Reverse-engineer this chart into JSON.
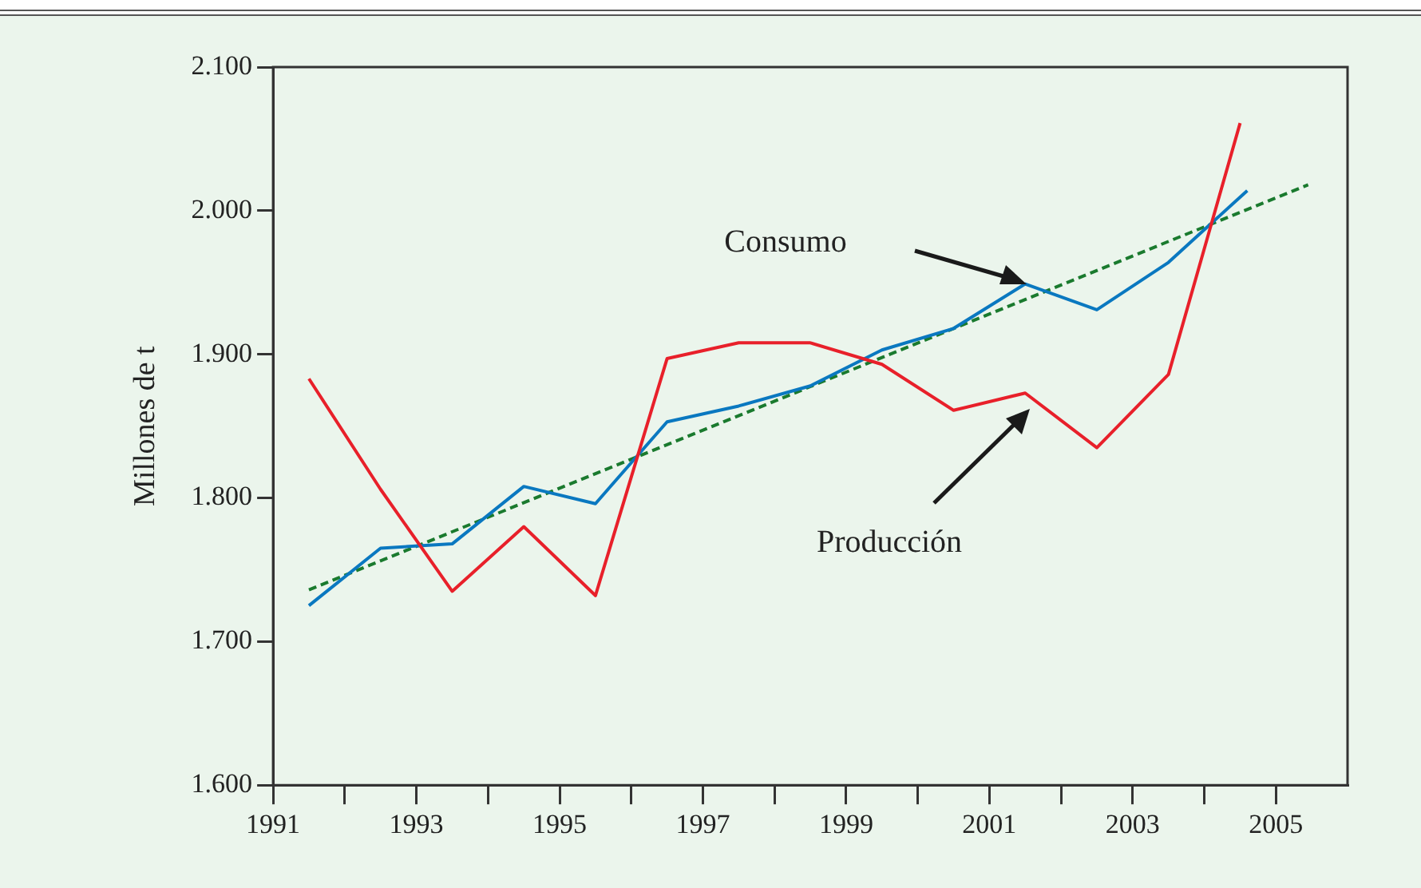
{
  "chart_data": {
    "type": "line",
    "ylabel": "Millones de t",
    "xlim": [
      1991,
      2006
    ],
    "xticks": [
      1991,
      {
        "value": 1992,
        "label": null
      },
      1993,
      {
        "value": 1994,
        "label": null
      },
      1995,
      {
        "value": 1996,
        "label": null
      },
      1997,
      {
        "value": 1998,
        "label": null
      },
      1999,
      {
        "value": 2000,
        "label": null
      },
      2001,
      {
        "value": 2002,
        "label": null
      },
      2003,
      {
        "value": 2004,
        "label": null
      },
      2005
    ],
    "ylim": [
      1600,
      2100
    ],
    "yticks": [
      {
        "value": 1600,
        "label": "1.600"
      },
      {
        "value": 1700,
        "label": "1.700"
      },
      {
        "value": 1800,
        "label": "1.800"
      },
      {
        "value": 1900,
        "label": "1.900"
      },
      {
        "value": 2000,
        "label": "2.000"
      },
      {
        "value": 2100,
        "label": "2.100"
      }
    ],
    "x": [
      1991.5,
      1992.5,
      1993.5,
      1994.5,
      1995.5,
      1996.5,
      1997.5,
      1998.5,
      1999.5,
      2000.5,
      2001.5,
      2002.5,
      2003.5,
      2004.5
    ],
    "series": [
      {
        "color": "#e8202a",
        "values": [
          1883,
          1806,
          1735,
          1780,
          1732,
          1897,
          1908,
          1908,
          1893,
          1861,
          1873,
          1835,
          1886,
          2061
        ]
      },
      {
        "color": "#0a78c0",
        "x": [
          1991.5,
          1992.5,
          1993.5,
          1994.5,
          1995.5,
          1996.5,
          1997.5,
          1998.5,
          1999.5,
          2000.5,
          2001.5,
          2002.5,
          2003.5,
          2004.6
        ],
        "values": [
          1725,
          1765,
          1768,
          1808,
          1796,
          1853,
          1864,
          1878,
          1903,
          1918,
          1949,
          1931,
          1964,
          2014
        ]
      },
      {
        "color": "#1a7a2e",
        "line_style": "dashed",
        "x": [
          1991.5,
          2005.45
        ],
        "values": [
          1736,
          2018
        ]
      }
    ],
    "annotations": [
      "Consumo",
      "Producción"
    ],
    "grid": false,
    "legend": false,
    "marker": "none"
  }
}
